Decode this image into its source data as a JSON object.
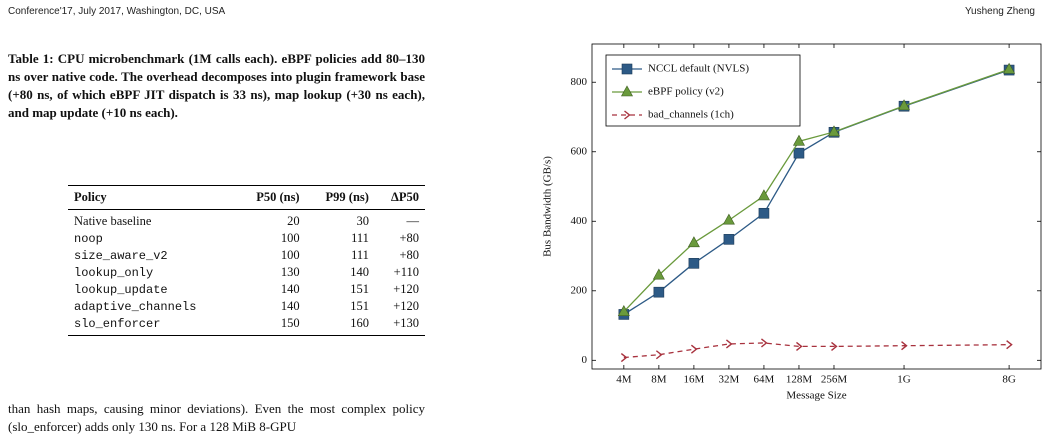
{
  "header": {
    "left": "Conference'17, July 2017, Washington, DC, USA",
    "right": "Yusheng Zheng"
  },
  "table": {
    "caption": "Table 1: CPU microbenchmark (1M calls each). eBPF policies add 80–130 ns over native code. The overhead decomposes into plugin framework base (+80 ns, of which eBPF JIT dispatch is 33 ns), map lookup (+30 ns each), and map update (+10 ns each).",
    "header": [
      "Policy",
      "P50 (ns)",
      "P99 (ns)",
      "ΔP50"
    ],
    "rows": [
      [
        "Native baseline",
        "20",
        "30",
        "—"
      ],
      [
        "noop",
        "100",
        "111",
        "+80"
      ],
      [
        "size_aware_v2",
        "100",
        "111",
        "+80"
      ],
      [
        "lookup_only",
        "130",
        "140",
        "+110"
      ],
      [
        "lookup_update",
        "140",
        "151",
        "+120"
      ],
      [
        "adaptive_channels",
        "140",
        "151",
        "+120"
      ],
      [
        "slo_enforcer",
        "150",
        "160",
        "+130"
      ]
    ]
  },
  "body": {
    "text": "than hash maps, causing minor deviations). Even the most complex policy (slo_enforcer) adds only 130 ns. For a 128 MiB 8-GPU"
  },
  "chart_data": {
    "type": "line",
    "xlabel": "Message Size",
    "ylabel": "Bus Bandwidth (GB/s)",
    "x": [
      4,
      8,
      16,
      32,
      64,
      128,
      256,
      1024,
      8192
    ],
    "xlog": true,
    "xlim": [
      2.13,
      15400
    ],
    "xticks": [
      {
        "value": 4,
        "label": "4M"
      },
      {
        "value": 8,
        "label": "8M"
      },
      {
        "value": 16,
        "label": "16M"
      },
      {
        "value": 32,
        "label": "32M"
      },
      {
        "value": 64,
        "label": "64M"
      },
      {
        "value": 128,
        "label": "128M"
      },
      {
        "value": 256,
        "label": "256M"
      },
      {
        "value": 1024,
        "label": "1G"
      },
      {
        "value": 8192,
        "label": "8G"
      }
    ],
    "ylim": [
      -25,
      910
    ],
    "yticks": [
      0,
      200,
      400,
      600,
      800
    ],
    "legend": "top-left",
    "series": [
      {
        "name": "NCCL default (NVLS)",
        "color": "#2d5a86",
        "marker": "square",
        "dash": false,
        "values": [
          132,
          196,
          279,
          348,
          423,
          596,
          656,
          731,
          835
        ]
      },
      {
        "name": "eBPF policy (v2)",
        "color": "#6a9a3c",
        "marker": "triangle",
        "dash": false,
        "values": [
          140,
          245,
          338,
          403,
          473,
          630,
          657,
          732,
          837
        ]
      },
      {
        "name": "bad_channels (1ch)",
        "color": "#a8323e",
        "marker": "chevron",
        "dash": true,
        "values": [
          8,
          16,
          32,
          47,
          50,
          40,
          40,
          42,
          45
        ]
      }
    ]
  }
}
